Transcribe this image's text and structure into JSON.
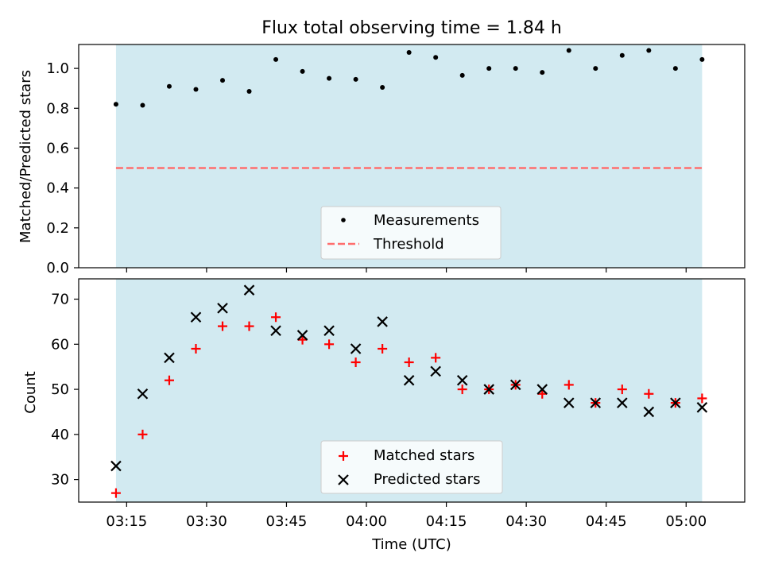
{
  "title": "Flux total observing time = 1.84 h",
  "colors": {
    "band": "#add8e6",
    "measurement": "#000000",
    "threshold": "#ff6e6e",
    "matched": "#ff0000",
    "predicted": "#000000"
  },
  "chart_data": [
    {
      "type": "scatter",
      "ylabel": "Matched/Predicted stars",
      "ylim": [
        0,
        1.12
      ],
      "yticks": [
        0.0,
        0.2,
        0.4,
        0.6,
        0.8,
        1.0
      ],
      "ytick_labels": [
        "0.0",
        "0.2",
        "0.4",
        "0.6",
        "0.8",
        "1.0"
      ],
      "legend_position": "lower center",
      "shaded_interval": [
        "03:13",
        "05:03"
      ],
      "x": [
        "03:13",
        "03:18",
        "03:23",
        "03:28",
        "03:33",
        "03:38",
        "03:43",
        "03:48",
        "03:53",
        "03:58",
        "04:03",
        "04:08",
        "04:13",
        "04:18",
        "04:23",
        "04:28",
        "04:33",
        "04:38",
        "04:43",
        "04:48",
        "04:53",
        "04:58",
        "05:03"
      ],
      "series": [
        {
          "name": "Measurements",
          "values": [
            0.82,
            0.815,
            0.91,
            0.895,
            0.94,
            0.885,
            1.045,
            0.985,
            0.95,
            0.945,
            0.905,
            1.08,
            1.055,
            0.965,
            1.0,
            1.0,
            0.98,
            1.09,
            1.0,
            1.065,
            1.09,
            1.0,
            1.045
          ]
        },
        {
          "name": "Threshold",
          "values": [
            0.5,
            0.5
          ]
        }
      ]
    },
    {
      "type": "scatter",
      "xlabel": "Time (UTC)",
      "ylabel": "Count",
      "ylim": [
        25,
        74.5
      ],
      "xlim": [
        "03:06",
        "05:11"
      ],
      "yticks": [
        30,
        40,
        50,
        60,
        70
      ],
      "xticks": [
        "03:15",
        "03:30",
        "03:45",
        "04:00",
        "04:15",
        "04:30",
        "04:45",
        "05:00"
      ],
      "legend_position": "lower center",
      "shaded_interval": [
        "03:13",
        "05:03"
      ],
      "x": [
        "03:13",
        "03:18",
        "03:23",
        "03:28",
        "03:33",
        "03:38",
        "03:43",
        "03:48",
        "03:53",
        "03:58",
        "04:03",
        "04:08",
        "04:13",
        "04:18",
        "04:23",
        "04:28",
        "04:33",
        "04:38",
        "04:43",
        "04:48",
        "04:53",
        "04:58",
        "05:03"
      ],
      "series": [
        {
          "name": "Matched stars",
          "values": [
            27,
            40,
            52,
            59,
            64,
            64,
            66,
            61,
            60,
            56,
            59,
            56,
            57,
            50,
            50,
            51,
            49,
            51,
            47,
            50,
            49,
            47,
            48
          ]
        },
        {
          "name": "Predicted stars",
          "values": [
            33,
            49,
            57,
            66,
            68,
            72,
            63,
            62,
            63,
            59,
            65,
            52,
            54,
            52,
            50,
            51,
            50,
            47,
            47,
            47,
            45,
            47,
            46
          ]
        }
      ]
    }
  ]
}
